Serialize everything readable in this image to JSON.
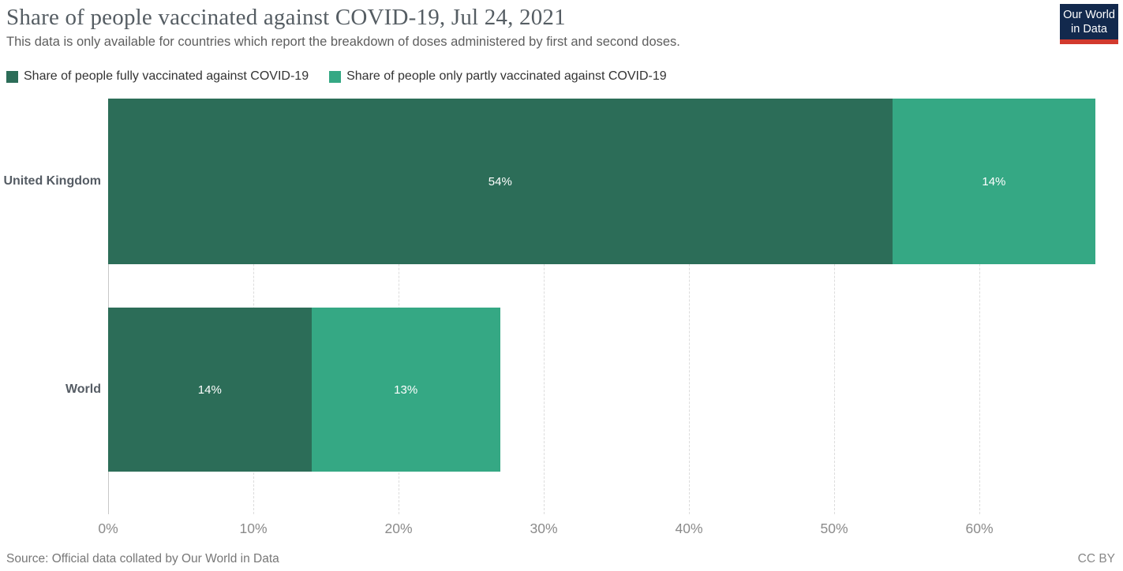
{
  "header": {
    "title": "Share of people vaccinated against COVID-19, Jul 24, 2021",
    "subtitle": "This data is only available for countries which report the breakdown of doses administered by first and second doses.",
    "logo": {
      "line1": "Our World",
      "line2": "in Data",
      "bg_color": "#12294d",
      "accent_color": "#d23a2e"
    }
  },
  "legend": {
    "items": [
      {
        "label": "Share of people fully vaccinated against COVID-19",
        "color": "#2c6d58"
      },
      {
        "label": "Share of people only partly vaccinated against COVID-19",
        "color": "#35a884"
      }
    ]
  },
  "chart_data": {
    "type": "bar",
    "orientation": "horizontal",
    "stacked": true,
    "title": "Share of people vaccinated against COVID-19, Jul 24, 2021",
    "categories": [
      "United Kingdom",
      "World"
    ],
    "series": [
      {
        "name": "Share of people fully vaccinated against COVID-19",
        "color": "#2c6d58",
        "values": [
          54,
          14
        ],
        "labels": [
          "54%",
          "14%"
        ]
      },
      {
        "name": "Share of people only partly vaccinated against COVID-19",
        "color": "#35a884",
        "values": [
          14,
          13
        ],
        "labels": [
          "14%",
          "13%"
        ]
      }
    ],
    "xlim": [
      0,
      68.75
    ],
    "x_ticks": [
      {
        "value": 0,
        "label": "0%"
      },
      {
        "value": 10,
        "label": "10%"
      },
      {
        "value": 20,
        "label": "20%"
      },
      {
        "value": 30,
        "label": "30%"
      },
      {
        "value": 40,
        "label": "40%"
      },
      {
        "value": 50,
        "label": "50%"
      },
      {
        "value": 60,
        "label": "60%"
      }
    ],
    "grid": "vertical-dashed",
    "legend_position": "top"
  },
  "footer": {
    "source": "Source: Official data collated by Our World in Data",
    "license": "CC BY"
  },
  "colors": {
    "fully_vaccinated": "#2c6d58",
    "partly_vaccinated": "#35a884",
    "gridline": "#dcdcdc",
    "axis_text": "#8b8b8b"
  }
}
